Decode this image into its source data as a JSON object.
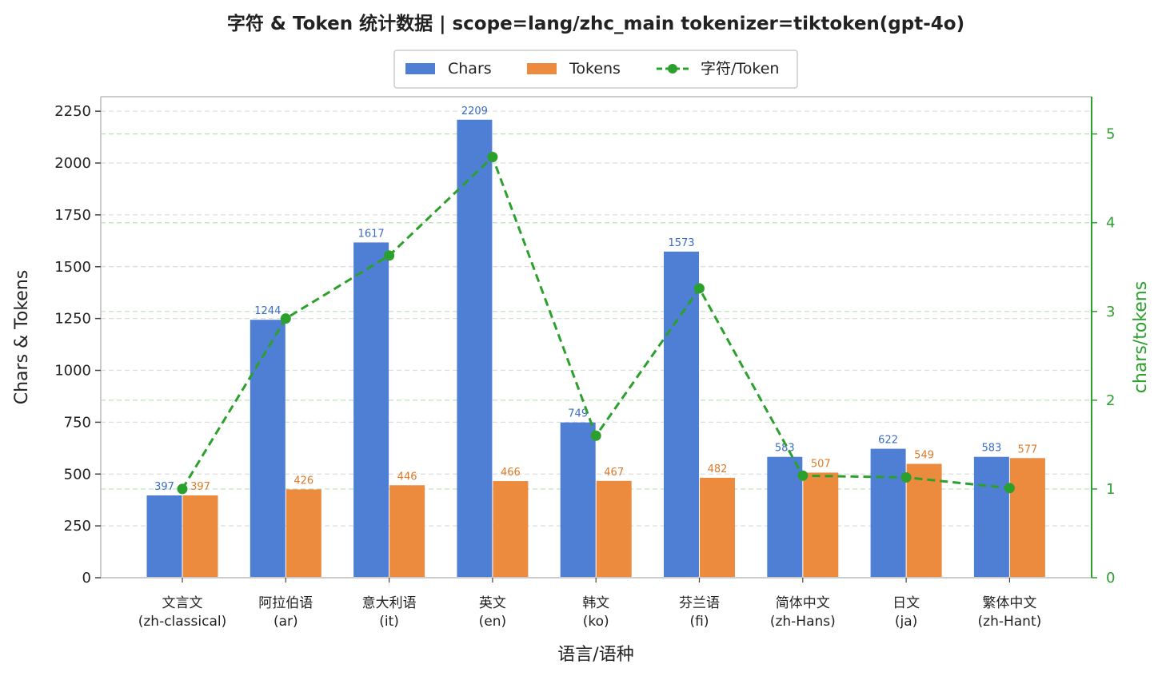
{
  "chart_data": {
    "type": "bar",
    "title": "字符 & Token 统计数据  |  scope=lang/zhc_main  tokenizer=tiktoken(gpt-4o)",
    "xlabel": "语言/语种",
    "ylabel": "Chars & Tokens",
    "y2label": "chars/tokens",
    "ylim": [
      0,
      2320
    ],
    "y2lim": [
      0,
      5.42
    ],
    "yticks": [
      "0",
      "250",
      "500",
      "750",
      "1000",
      "1250",
      "1500",
      "1750",
      "2000",
      "2250"
    ],
    "y2ticks": [
      "0",
      "1",
      "2",
      "3",
      "4",
      "5"
    ],
    "grid": true,
    "legend_position": "top-center",
    "categories": [
      [
        "文言文",
        "(zh-classical)"
      ],
      [
        "阿拉伯语",
        "(ar)"
      ],
      [
        "意大利语",
        "(it)"
      ],
      [
        "英文",
        "(en)"
      ],
      [
        "韩文",
        "(ko)"
      ],
      [
        "芬兰语",
        "(fi)"
      ],
      [
        "简体中文",
        "(zh-Hans)"
      ],
      [
        "日文",
        "(ja)"
      ],
      [
        "繁体中文",
        "(zh-Hant)"
      ]
    ],
    "series": [
      {
        "name": "Chars",
        "type": "bar",
        "axis": "left",
        "color": "#4f7fd5",
        "label_color": "#3a6cc4",
        "values": [
          397,
          1244,
          1617,
          2209,
          749,
          1573,
          583,
          622,
          583
        ]
      },
      {
        "name": "Tokens",
        "type": "bar",
        "axis": "left",
        "color": "#ec8a3e",
        "label_color": "#e07a28",
        "values": [
          397,
          426,
          446,
          466,
          467,
          482,
          507,
          549,
          577
        ]
      },
      {
        "name": "字符/Token",
        "type": "line",
        "axis": "right",
        "color": "#2ca02c",
        "dashed": true,
        "values": [
          1.0,
          2.92,
          3.63,
          4.74,
          1.6,
          3.26,
          1.15,
          1.13,
          1.01
        ]
      }
    ]
  }
}
